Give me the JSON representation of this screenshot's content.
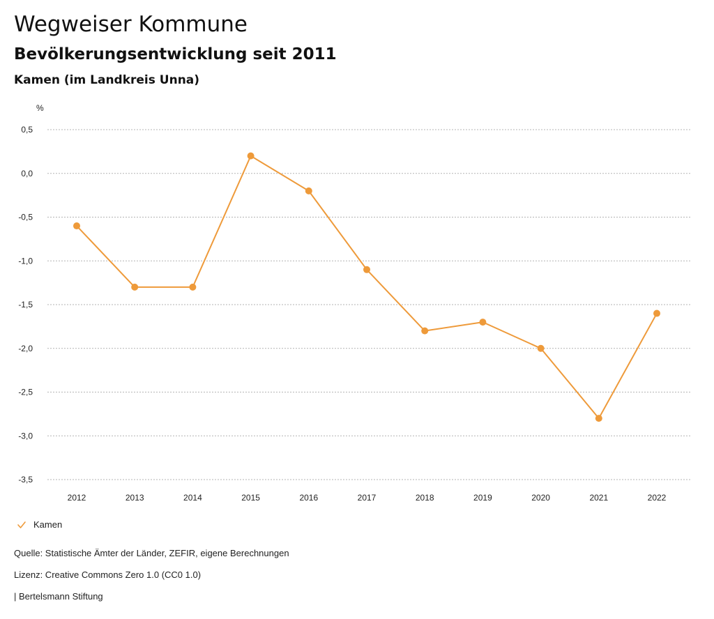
{
  "header": {
    "title": "Wegweiser Kommune",
    "subtitle": "Bevölkerungsentwicklung seit 2011",
    "region": "Kamen (im Landkreis Unna)"
  },
  "colors": {
    "series": "#ee9a3a",
    "grid": "#b3b3b3",
    "text": "#222222"
  },
  "legend": {
    "items": [
      {
        "label": "Kamen",
        "icon": "check-icon"
      }
    ]
  },
  "footer": {
    "source": "Quelle: Statistische Ämter der Länder, ZEFIR, eigene Berechnungen",
    "license": "Lizenz: Creative Commons Zero 1.0 (CC0 1.0)",
    "publisher": "| Bertelsmann Stiftung"
  },
  "chart_data": {
    "type": "line",
    "title": "Bevölkerungsentwicklung seit 2011",
    "xlabel": "",
    "ylabel": "%",
    "categories": [
      "2012",
      "2013",
      "2014",
      "2015",
      "2016",
      "2017",
      "2018",
      "2019",
      "2020",
      "2021",
      "2022"
    ],
    "series": [
      {
        "name": "Kamen",
        "values": [
          -0.6,
          -1.3,
          -1.3,
          0.2,
          -0.2,
          -1.1,
          -1.8,
          -1.7,
          -2.0,
          -2.8,
          -1.6
        ]
      }
    ],
    "ylim": [
      -3.5,
      0.5
    ],
    "yticks": [
      0.5,
      0.0,
      -0.5,
      -1.0,
      -1.5,
      -2.0,
      -2.5,
      -3.0,
      -3.5
    ],
    "ytick_labels": [
      "0,5",
      "0,0",
      "-0,5",
      "-1,0",
      "-1,5",
      "-2,0",
      "-2,5",
      "-3,0",
      "-3,5"
    ],
    "grid": true,
    "legend_position": "bottom-left"
  }
}
